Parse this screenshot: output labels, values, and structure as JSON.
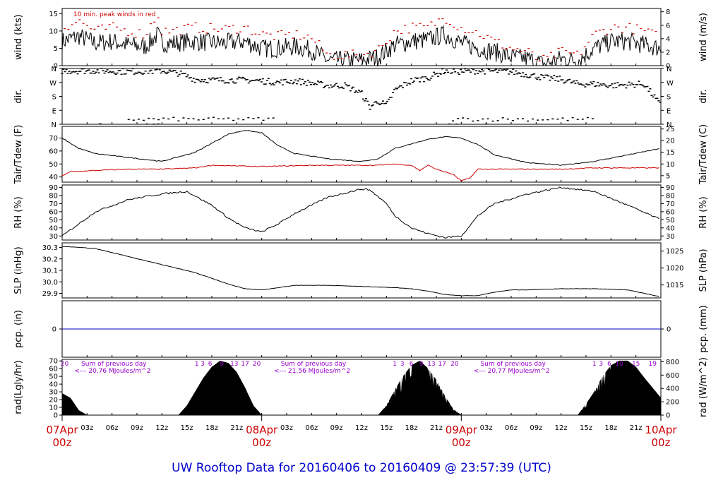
{
  "title": "UW Rooftop Data for 20160406  to  20160409 @ 23:57:39  (UTC)",
  "colors": {
    "axis": "#000000",
    "red": "#cc0000",
    "blue": "#0000cc",
    "magenta": "#9900cc",
    "title": "#0000cc"
  },
  "x_axis": {
    "hour_ticks": [
      "03z",
      "06z",
      "09z",
      "12z",
      "15z",
      "18z",
      "21z",
      "03z",
      "06z",
      "09z",
      "12z",
      "15z",
      "18z",
      "21z",
      "03z",
      "06z",
      "09z",
      "12z",
      "15z",
      "18z",
      "21z"
    ],
    "hour_values": [
      3,
      6,
      9,
      12,
      15,
      18,
      21,
      27,
      30,
      33,
      36,
      39,
      42,
      45,
      51,
      54,
      57,
      60,
      63,
      66,
      69
    ],
    "day_labels": [
      {
        "date": "07Apr",
        "time": "00z",
        "x": 0
      },
      {
        "date": "08Apr",
        "time": "00z",
        "x": 24
      },
      {
        "date": "09Apr",
        "time": "00z",
        "x": 48
      },
      {
        "date": "10Apr",
        "time": "00z",
        "x": 72
      }
    ]
  },
  "panels": {
    "wind": {
      "left_label": "wind (kts)",
      "right_label": "wind (m/s)",
      "annotation": "10 min. peak winds in red",
      "left_ticks": [
        "0",
        "5",
        "10",
        "15"
      ],
      "left_values": [
        0,
        5,
        10,
        15
      ],
      "right_ticks": [
        "0",
        "2",
        "4",
        "6",
        "8"
      ],
      "right_values": [
        0,
        2,
        4,
        6,
        8
      ]
    },
    "dir": {
      "left_label": "dir.",
      "right_label": "dir.",
      "left_ticks": [
        "N",
        "W",
        "S",
        "E",
        "N"
      ],
      "right_ticks": [
        "N",
        "W",
        "S",
        "E",
        "N"
      ]
    },
    "temp": {
      "left_label": "Tair/Tdew (F)",
      "right_label": "Tair/Tdew (C)",
      "left_ticks": [
        "40",
        "50",
        "60",
        "70"
      ],
      "left_values": [
        40,
        50,
        60,
        70
      ],
      "right_ticks": [
        "5",
        "10",
        "15",
        "20",
        "25"
      ],
      "right_values": [
        5,
        10,
        15,
        20,
        25
      ]
    },
    "rh": {
      "left_label": "RH (%)",
      "right_label": "RH (%)",
      "left_ticks": [
        "30",
        "40",
        "50",
        "60",
        "70",
        "80",
        "90"
      ],
      "left_values": [
        30,
        40,
        50,
        60,
        70,
        80,
        90
      ],
      "right_ticks": [
        "30",
        "40",
        "50",
        "60",
        "70",
        "80",
        "90"
      ]
    },
    "slp": {
      "left_label": "SLP (inHg)",
      "right_label": "SLP (hPa)",
      "left_ticks": [
        "29.9",
        "30.0",
        "30.1",
        "30.2",
        "30.3"
      ],
      "left_values": [
        29.9,
        30.0,
        30.1,
        30.2,
        30.3
      ],
      "right_ticks": [
        "1015",
        "1020",
        "1025"
      ],
      "right_values": [
        1015,
        1020,
        1025
      ]
    },
    "pcp": {
      "left_label": "pcp. (in)",
      "right_label": "pcp. (mm)",
      "left_ticks": [
        "0"
      ],
      "right_ticks": [
        "0"
      ]
    },
    "rad": {
      "left_label": "rad(Lgly/hr)",
      "right_label": "rad (W/m^2)",
      "left_ticks": [
        "0",
        "10",
        "20",
        "30",
        "40",
        "50",
        "60",
        "70"
      ],
      "left_values": [
        0,
        10,
        20,
        30,
        40,
        50,
        60,
        70
      ],
      "right_ticks": [
        "0",
        "200",
        "400",
        "600",
        "800"
      ],
      "right_values": [
        0,
        200,
        400,
        600,
        800
      ],
      "sum_label": "Sum of previous day",
      "sums": [
        {
          "text": "<--- 20.76 MJoules/m^2",
          "x": 3
        },
        {
          "text": "<--- 21.56 MJoules/m^2",
          "x": 27
        },
        {
          "text": "<--- 20.77 MJoules/m^2",
          "x": 51
        }
      ],
      "top_numbers": [
        {
          "text": "20",
          "x": 0.3
        },
        {
          "text": "1",
          "x": 16.2
        },
        {
          "text": "3",
          "x": 16.9
        },
        {
          "text": "6",
          "x": 17.8
        },
        {
          "text": "9",
          "x": 19.2
        },
        {
          "text": "13",
          "x": 20.7
        },
        {
          "text": "17",
          "x": 22.0
        },
        {
          "text": "20",
          "x": 23.4
        },
        {
          "text": "1",
          "x": 40.0
        },
        {
          "text": "3",
          "x": 40.9
        },
        {
          "text": "6",
          "x": 42.0
        },
        {
          "text": "9",
          "x": 43.2
        },
        {
          "text": "13",
          "x": 44.4
        },
        {
          "text": "17",
          "x": 45.7
        },
        {
          "text": "20",
          "x": 47.2
        },
        {
          "text": "1",
          "x": 64.0
        },
        {
          "text": "3",
          "x": 64.8
        },
        {
          "text": "6",
          "x": 65.8
        },
        {
          "text": "10",
          "x": 67.0
        },
        {
          "text": "15",
          "x": 69.0
        },
        {
          "text": "19",
          "x": 71.0
        }
      ]
    }
  },
  "chart_data": {
    "type": "line",
    "x_unit": "hours since 07Apr 00z",
    "xlim": [
      0,
      72
    ],
    "series": [
      {
        "name": "wind (kts)",
        "panel": "wind",
        "ylim": [
          0,
          16.5
        ],
        "x": [
          0,
          2,
          4,
          6,
          8,
          10,
          11.5,
          12,
          13,
          16,
          19,
          22,
          24,
          26,
          28,
          30,
          32,
          33,
          34,
          36,
          38,
          40,
          42,
          44,
          46,
          48,
          50,
          52,
          54,
          56,
          57,
          58,
          60,
          62,
          64,
          66,
          68,
          70,
          72
        ],
        "y": [
          7,
          8.5,
          6.5,
          7,
          6,
          5.5,
          9,
          6.5,
          6.5,
          7,
          6.5,
          7,
          5,
          5,
          5.5,
          4.5,
          1.5,
          1.5,
          1.5,
          1.5,
          2.5,
          6,
          7,
          7.5,
          9,
          6.5,
          5,
          4,
          2.5,
          2,
          1,
          0.5,
          2,
          1.5,
          5,
          7,
          7,
          6,
          5
        ]
      },
      {
        "name": "peak wind (kts)",
        "panel": "wind",
        "ylim": [
          0,
          16.5
        ],
        "x": [
          0,
          2,
          4,
          6,
          8,
          10,
          11.5,
          12,
          13,
          16,
          19,
          22,
          24,
          26,
          28,
          30,
          32,
          33,
          34,
          36,
          38,
          40,
          42,
          44,
          46,
          48,
          50,
          52,
          54,
          56,
          57,
          58,
          60,
          62,
          64,
          66,
          68,
          70,
          72
        ],
        "y": [
          11,
          13,
          10,
          11,
          10,
          9,
          15,
          10,
          10,
          11,
          10.5,
          11,
          9,
          8.5,
          9,
          8,
          3,
          3,
          3,
          3,
          4.5,
          10,
          11,
          11,
          14,
          11,
          9.5,
          7,
          5,
          4,
          2,
          1.5,
          4,
          3,
          9,
          11,
          11,
          10,
          8
        ]
      },
      {
        "name": "dir.",
        "panel": "dir",
        "yunits": "deg",
        "ylim": [
          0,
          360
        ],
        "x": [
          0,
          4,
          8,
          12,
          14,
          16,
          18,
          22,
          24,
          26,
          28,
          30,
          32,
          34,
          36,
          37,
          38,
          39,
          40,
          42,
          44,
          46,
          48,
          50,
          54,
          58,
          60,
          62,
          64,
          66,
          68,
          70,
          72
        ],
        "y": [
          345,
          345,
          340,
          345,
          330,
          290,
          285,
          285,
          280,
          270,
          280,
          265,
          250,
          250,
          200,
          110,
          150,
          120,
          220,
          280,
          300,
          345,
          340,
          345,
          340,
          300,
          290,
          260,
          260,
          250,
          255,
          260,
          120
        ]
      },
      {
        "name": "Tair (F)",
        "panel": "temp",
        "ylim": [
          36,
          79
        ],
        "x": [
          0,
          2,
          4,
          8,
          12,
          16,
          20,
          22,
          24,
          26,
          28,
          32,
          36,
          38,
          40,
          44,
          46,
          48,
          50,
          52,
          54,
          56,
          60,
          64,
          68,
          72
        ],
        "y": [
          70,
          62,
          58,
          55,
          52,
          59,
          73,
          76,
          74,
          64,
          58,
          54,
          52,
          54,
          62,
          69,
          71,
          70,
          65,
          57,
          54,
          51,
          49,
          52,
          57,
          62
        ]
      },
      {
        "name": "Tdew (F)",
        "panel": "temp",
        "ylim": [
          36,
          79
        ],
        "x": [
          0,
          1,
          4,
          8,
          12,
          16,
          18,
          24,
          30,
          34,
          38,
          40,
          42,
          43,
          44,
          45,
          46,
          47,
          48,
          49,
          50,
          52,
          56,
          60,
          64,
          68,
          72
        ],
        "y": [
          41,
          44,
          45,
          46,
          46,
          47,
          49,
          48,
          49,
          49,
          49,
          50,
          49,
          45,
          49,
          46,
          44,
          42,
          37,
          39,
          46,
          46,
          46,
          46,
          47,
          47,
          47
        ]
      },
      {
        "name": "RH (%)",
        "panel": "rh",
        "ylim": [
          25,
          93
        ],
        "x": [
          0,
          2,
          4,
          8,
          12,
          15,
          18,
          20,
          22,
          24,
          26,
          28,
          32,
          36,
          37,
          39,
          40,
          42,
          44,
          46,
          48,
          50,
          52,
          56,
          60,
          64,
          68,
          72
        ],
        "y": [
          30,
          45,
          60,
          75,
          82,
          85,
          68,
          52,
          40,
          35,
          45,
          58,
          78,
          88,
          87,
          70,
          55,
          40,
          33,
          28,
          30,
          55,
          70,
          82,
          90,
          85,
          68,
          50
        ]
      },
      {
        "name": "SLP (inHg)",
        "panel": "slp",
        "ylim": [
          29.86,
          30.34
        ],
        "x": [
          0,
          4,
          8,
          12,
          16,
          20,
          22,
          24,
          26,
          28,
          30,
          32,
          36,
          40,
          42,
          44,
          46,
          48,
          50,
          52,
          54,
          56,
          60,
          64,
          68,
          72
        ],
        "y": [
          30.31,
          30.29,
          30.22,
          30.15,
          30.08,
          29.98,
          29.94,
          29.93,
          29.95,
          29.97,
          29.97,
          29.97,
          29.96,
          29.95,
          29.94,
          29.92,
          29.89,
          29.88,
          29.88,
          29.91,
          29.93,
          29.93,
          29.94,
          29.94,
          29.93,
          29.87
        ]
      },
      {
        "name": "pcp. (in)",
        "panel": "pcp",
        "ylim": [
          -1,
          1
        ],
        "x": [
          0,
          72
        ],
        "y": [
          0,
          0
        ]
      },
      {
        "name": "rad (Lgly/hr)",
        "panel": "rad",
        "ylim": [
          0,
          72
        ],
        "x": [
          0,
          1,
          2,
          3,
          14,
          15,
          16,
          17,
          18,
          19,
          20,
          21,
          22,
          23,
          24,
          38,
          39,
          40,
          41,
          42,
          43,
          44,
          45,
          46,
          47,
          48,
          62,
          63,
          64,
          65,
          66,
          67,
          68,
          69,
          70,
          71,
          72
        ],
        "y": [
          28,
          22,
          6,
          0,
          0,
          12,
          30,
          48,
          62,
          70,
          67,
          55,
          35,
          12,
          0,
          0,
          12,
          32,
          50,
          64,
          70,
          60,
          45,
          25,
          8,
          0,
          0,
          14,
          30,
          50,
          64,
          70,
          70,
          62,
          48,
          35,
          22
        ]
      }
    ]
  }
}
